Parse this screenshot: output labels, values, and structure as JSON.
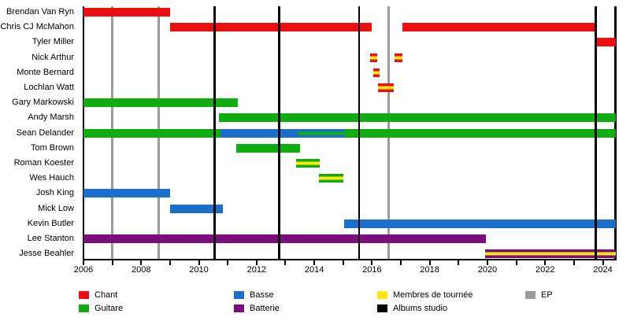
{
  "chart_data": {
    "type": "timeline",
    "title": "",
    "x_axis": {
      "start": 2006,
      "end": 2024.45,
      "tick_interval_years": 1,
      "label_years": [
        2006,
        2008,
        2010,
        2012,
        2014,
        2016,
        2018,
        2020,
        2022,
        2024
      ]
    },
    "colors": {
      "chant": "#ed0f0f",
      "guitare": "#10ad10",
      "basse": "#1b6fca",
      "batterie": "#7c0d7c",
      "tournee": "#ffe812",
      "album": "#000000",
      "ep": "#9b9b9b",
      "axis": "#000000"
    },
    "members": [
      {
        "name": "Brendan Van Ryn",
        "segments": [
          {
            "from": 2006.0,
            "to": 2009.0,
            "role": "chant"
          }
        ]
      },
      {
        "name": "Chris CJ McMahon",
        "segments": [
          {
            "from": 2009.0,
            "to": 2016.0,
            "role": "chant"
          },
          {
            "from": 2017.05,
            "to": 2023.75,
            "role": "chant"
          }
        ]
      },
      {
        "name": "Tyler Miller",
        "segments": [
          {
            "from": 2023.78,
            "to": 2024.45,
            "role": "chant"
          }
        ]
      },
      {
        "name": "Nick Arthur",
        "segments": [
          {
            "from": 2015.93,
            "to": 2016.17,
            "role": "chant",
            "stripe": "tournee"
          },
          {
            "from": 2016.78,
            "to": 2017.05,
            "role": "chant",
            "stripe": "tournee"
          }
        ]
      },
      {
        "name": "Monte Bernard",
        "segments": [
          {
            "from": 2016.05,
            "to": 2016.25,
            "role": "chant",
            "stripe": "tournee"
          }
        ]
      },
      {
        "name": "Lochlan Watt",
        "segments": [
          {
            "from": 2016.2,
            "to": 2016.75,
            "role": "chant",
            "stripe": "tournee"
          }
        ]
      },
      {
        "name": "Gary Markowski",
        "segments": [
          {
            "from": 2006.0,
            "to": 2011.35,
            "role": "guitare"
          }
        ]
      },
      {
        "name": "Andy Marsh",
        "segments": [
          {
            "from": 2010.7,
            "to": 2024.45,
            "role": "guitare"
          }
        ]
      },
      {
        "name": "Sean Delander",
        "segments": [
          {
            "from": 2006.0,
            "to": 2010.75,
            "role": "guitare"
          },
          {
            "from": 2010.75,
            "to": 2013.42,
            "role": "basse"
          },
          {
            "from": 2013.42,
            "to": 2015.07,
            "role": "basse",
            "stripe": "guitare"
          },
          {
            "from": 2015.07,
            "to": 2024.45,
            "role": "guitare"
          }
        ]
      },
      {
        "name": "Tom Brown",
        "segments": [
          {
            "from": 2011.3,
            "to": 2013.5,
            "role": "guitare"
          }
        ]
      },
      {
        "name": "Roman Koester",
        "segments": [
          {
            "from": 2013.36,
            "to": 2014.2,
            "role": "guitare",
            "stripe": "tournee"
          }
        ]
      },
      {
        "name": "Wes Hauch",
        "segments": [
          {
            "from": 2014.15,
            "to": 2015.0,
            "role": "guitare",
            "stripe": "tournee"
          }
        ]
      },
      {
        "name": "Josh King",
        "segments": [
          {
            "from": 2006.0,
            "to": 2009.0,
            "role": "basse"
          }
        ]
      },
      {
        "name": "Mick Low",
        "segments": [
          {
            "from": 2009.0,
            "to": 2010.82,
            "role": "basse"
          }
        ]
      },
      {
        "name": "Kevin Butler",
        "segments": [
          {
            "from": 2015.03,
            "to": 2024.45,
            "role": "basse"
          }
        ]
      },
      {
        "name": "Lee Stanton",
        "segments": [
          {
            "from": 2006.0,
            "to": 2019.95,
            "role": "batterie"
          }
        ]
      },
      {
        "name": "Jesse Beahler",
        "segments": [
          {
            "from": 2019.92,
            "to": 2024.45,
            "role": "batterie",
            "stripe": "tournee"
          }
        ]
      }
    ],
    "albums_studio_lines": [
      2010.55,
      2012.78,
      2015.55,
      2023.75
    ],
    "ep_lines": [
      2007.0,
      2008.62,
      2016.58
    ]
  },
  "legend": {
    "items": [
      {
        "label": "Chant",
        "color": "chant",
        "col": 0,
        "row": 0
      },
      {
        "label": "Guitare",
        "color": "guitare",
        "col": 0,
        "row": 1
      },
      {
        "label": "Basse",
        "color": "basse",
        "col": 1,
        "row": 0
      },
      {
        "label": "Batterie",
        "color": "batterie",
        "col": 1,
        "row": 1
      },
      {
        "label": "Membres de tournée",
        "color": "tournee",
        "col": 2,
        "row": 0
      },
      {
        "label": "Albums studio",
        "color": "album",
        "col": 2,
        "row": 1
      },
      {
        "label": "EP",
        "color": "ep",
        "col": 3,
        "row": 0
      }
    ]
  }
}
